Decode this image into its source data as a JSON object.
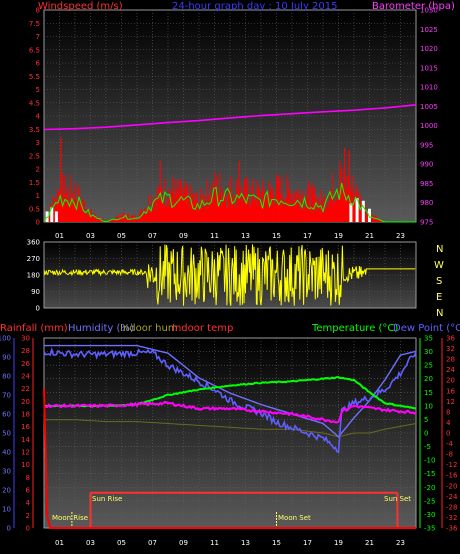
{
  "colors": {
    "wind": "#ff0000",
    "gust": "#00ff00",
    "baro": "#ff00ff",
    "dir": "#ffff00",
    "rain": "#ff0000",
    "humidity": "#7070ff",
    "indoor_hum": "#6a6a20",
    "indoor_temp": "#ff3030",
    "temp": "#00ff00",
    "dew": "#5f5fff",
    "inside_t": "#ff00ff",
    "sun": "#ffff66",
    "grid": "#606060"
  },
  "chart_data": [
    {
      "type": "line",
      "title": "24-hour graph day : 10 July 2015",
      "left_axis_label": "Windspeed (m/s)",
      "right_axis_label": "Barometer (hpa)",
      "left_ticks": [
        "0",
        "0.5",
        "1",
        "1.5",
        "2",
        "2.5",
        "3",
        "3.5",
        "4",
        "4.5",
        "5",
        "5.5",
        "6",
        "6.5",
        "7",
        "7.5",
        "8"
      ],
      "right_ticks": [
        "975",
        "980",
        "985",
        "990",
        "995",
        "1000",
        "1005",
        "1010",
        "1015",
        "1020",
        "1025",
        "1030"
      ],
      "x_ticks": [
        "01",
        "03",
        "05",
        "07",
        "09",
        "11",
        "13",
        "15",
        "17",
        "19",
        "21",
        "23"
      ],
      "ylim_left": [
        0,
        8
      ],
      "ylim_right": [
        975,
        1030
      ],
      "series": [
        {
          "name": "Barometer",
          "x": [
            0,
            2,
            4,
            6,
            8,
            10,
            12,
            14,
            16,
            18,
            20,
            22,
            24
          ],
          "values": [
            999.0,
            999.2,
            999.6,
            1000.2,
            1000.8,
            1001.3,
            1002.0,
            1002.6,
            1003.1,
            1003.6,
            1004.0,
            1004.6,
            1005.4
          ]
        }
      ],
      "wind_profile": [
        {
          "x": 0,
          "v": 0
        },
        {
          "x": 1,
          "v": 1.4
        },
        {
          "x": 2,
          "v": 1.3
        },
        {
          "x": 3,
          "v": 0.4
        },
        {
          "x": 4,
          "v": 0
        },
        {
          "x": 5,
          "v": 0.3
        },
        {
          "x": 6,
          "v": 0.2
        },
        {
          "x": 7,
          "v": 1.1
        },
        {
          "x": 8,
          "v": 1.4
        },
        {
          "x": 9,
          "v": 1.2
        },
        {
          "x": 10,
          "v": 0.9
        },
        {
          "x": 11,
          "v": 1.5
        },
        {
          "x": 12,
          "v": 1.4
        },
        {
          "x": 13,
          "v": 1.3
        },
        {
          "x": 14,
          "v": 1.2
        },
        {
          "x": 15,
          "v": 1.4
        },
        {
          "x": 16,
          "v": 1.3
        },
        {
          "x": 17,
          "v": 1.2
        },
        {
          "x": 18,
          "v": 0.9
        },
        {
          "x": 19,
          "v": 1.8
        },
        {
          "x": 20,
          "v": 1.4
        },
        {
          "x": 21,
          "v": 0.3
        },
        {
          "x": 22,
          "v": 0
        },
        {
          "x": 23,
          "v": 0
        },
        {
          "x": 24,
          "v": 0
        }
      ]
    },
    {
      "type": "line",
      "axis_ticks": [
        "0",
        "90",
        "180",
        "270",
        "360"
      ],
      "compass": [
        "N",
        "W",
        "S",
        "E",
        "N"
      ],
      "ylim": [
        0,
        360
      ],
      "series": [
        {
          "name": "Wind direction",
          "x": [
            0,
            2,
            4,
            6,
            7,
            8,
            10,
            12,
            14,
            16,
            18,
            19,
            20,
            21,
            24
          ],
          "values": [
            195,
            195,
            200,
            210,
            200,
            160,
            200,
            180,
            190,
            170,
            180,
            160,
            200,
            215,
            215
          ]
        }
      ]
    },
    {
      "type": "line",
      "labels": {
        "rain": "Rainfall (mm)",
        "hum": "Humidity (%)",
        "ihum": "Indoor hum",
        "itemp": "Indoor temp",
        "temp": "Temperature (°C)",
        "dew": "Dew Point (°C)"
      },
      "rain_ticks": [
        "0",
        "2",
        "4",
        "6",
        "8",
        "10",
        "12",
        "14",
        "16",
        "18",
        "20",
        "22",
        "24",
        "26",
        "28",
        "30"
      ],
      "hum_ticks": [
        "0",
        "10",
        "20",
        "30",
        "40",
        "50",
        "60",
        "70",
        "80",
        "90",
        "100"
      ],
      "temp_ticks": [
        "-35",
        "-30",
        "-25",
        "-20",
        "-15",
        "-10",
        "-5",
        "0",
        "5",
        "10",
        "15",
        "20",
        "25",
        "30",
        "35"
      ],
      "dew_ticks": [
        "-36",
        "-32",
        "-28",
        "-24",
        "-20",
        "-16",
        "-12",
        "-8",
        "-4",
        "0",
        "4",
        "8",
        "12",
        "16",
        "20",
        "24",
        "28",
        "32",
        "36"
      ],
      "events": {
        "sun_rise": "Sun Rise",
        "sun_set": "Sun Set",
        "moon_rise": "Moon Rise",
        "moon_set": "Moon Set"
      },
      "ylim_temp": [
        -35,
        35
      ],
      "ylim_hum": [
        0,
        100
      ],
      "series": [
        {
          "name": "Temperature",
          "x": [
            0,
            2,
            4,
            6,
            8,
            10,
            12,
            14,
            16,
            18,
            19,
            20,
            21,
            22,
            24
          ],
          "values": [
            10.0,
            10.0,
            10.0,
            10.5,
            14.0,
            16.0,
            17.5,
            18.5,
            19.0,
            20.0,
            20.5,
            19.5,
            15.0,
            11.0,
            9.0
          ]
        },
        {
          "name": "Dew Point",
          "x": [
            0,
            2,
            4,
            6,
            7,
            8,
            9,
            10,
            11,
            12,
            13,
            14,
            15,
            16,
            17,
            18,
            19,
            19.2,
            20,
            21,
            22,
            23,
            24
          ],
          "values": [
            30.0,
            29.0,
            29.0,
            29.5,
            29.5,
            25.0,
            22.0,
            19.0,
            16.0,
            12.0,
            9.5,
            7.5,
            4.0,
            2.0,
            0.0,
            -2.0,
            -6.0,
            8.0,
            11.0,
            13.0,
            16.0,
            22.0,
            30.0
          ]
        },
        {
          "name": "Indoor temp",
          "x": [
            0,
            2,
            4,
            6,
            8,
            10,
            12,
            14,
            16,
            18,
            19,
            19.2,
            20,
            22,
            24
          ],
          "values": [
            10.0,
            10.0,
            10.0,
            10.5,
            11.0,
            9.0,
            9.0,
            8.0,
            7.0,
            5.0,
            4.0,
            8.0,
            10.0,
            8.5,
            7.5
          ]
        },
        {
          "name": "Humidity",
          "x": [
            0,
            2,
            4,
            6,
            8,
            10,
            12,
            14,
            16,
            18,
            19,
            20,
            21,
            22,
            23,
            24
          ],
          "values": [
            96,
            96,
            96,
            96,
            92,
            79,
            71,
            65,
            60,
            55,
            48,
            58,
            67,
            78,
            91,
            93
          ]
        },
        {
          "name": "Indoor hum",
          "x": [
            0,
            2,
            4,
            6,
            8,
            10,
            12,
            14,
            16,
            18,
            19,
            20,
            21,
            22,
            24
          ],
          "values": [
            57,
            57,
            56,
            56,
            55,
            54,
            53,
            52,
            52,
            50,
            48,
            50,
            50,
            52,
            55
          ]
        },
        {
          "name": "Rainfall",
          "x": [
            0,
            0.2,
            0.4,
            24
          ],
          "values": [
            22.0,
            2.0,
            0.0,
            0.0
          ]
        }
      ],
      "sun_level": -22.0,
      "sun_rise_x": 3.0,
      "sun_set_x": 22.8,
      "moon_rise_x": 1.8,
      "moon_set_x": 15.0
    }
  ]
}
